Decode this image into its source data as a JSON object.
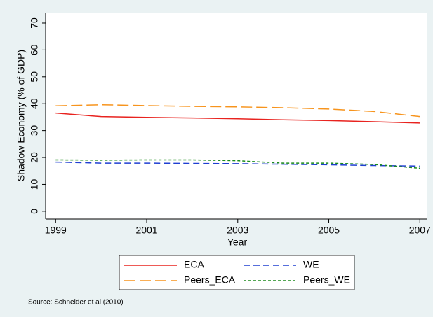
{
  "chart_data": {
    "type": "line",
    "x_label": "Year",
    "y_label": "Shadow Economy (% of GDP)",
    "source": "Source: Schneider et al (2010)",
    "x": [
      1999,
      2000,
      2001,
      2002,
      2003,
      2004,
      2005,
      2006,
      2007
    ],
    "series": [
      {
        "name": "ECA",
        "color": "#e8231f",
        "line_style": "solid",
        "values": [
          36.5,
          35.2,
          34.9,
          34.7,
          34.4,
          34.0,
          33.7,
          33.3,
          32.8
        ]
      },
      {
        "name": "WE",
        "color": "#1f3fd1",
        "line_style": "dashed",
        "values": [
          18.3,
          17.9,
          17.9,
          17.8,
          17.7,
          17.5,
          17.3,
          17.0,
          16.8
        ]
      },
      {
        "name": "Peers_ECA",
        "color": "#f7941d",
        "line_style": "longdash",
        "values": [
          39.2,
          39.6,
          39.3,
          39.0,
          38.8,
          38.5,
          38.0,
          37.1,
          35.2
        ]
      },
      {
        "name": "Peers_WE",
        "color": "#1a8a1a",
        "line_style": "shortdash",
        "values": [
          19.1,
          19.0,
          19.1,
          19.1,
          18.8,
          17.9,
          17.9,
          17.4,
          16.0
        ]
      }
    ],
    "xlim": [
      1998.78,
      2007.15
    ],
    "xticks": [
      1999,
      2001,
      2003,
      2005,
      2007
    ],
    "ylim": [
      -2.9,
      73.9
    ],
    "yticks": [
      0,
      10,
      20,
      30,
      40,
      50,
      60,
      70
    ],
    "grid": false,
    "legend": "bottom"
  }
}
